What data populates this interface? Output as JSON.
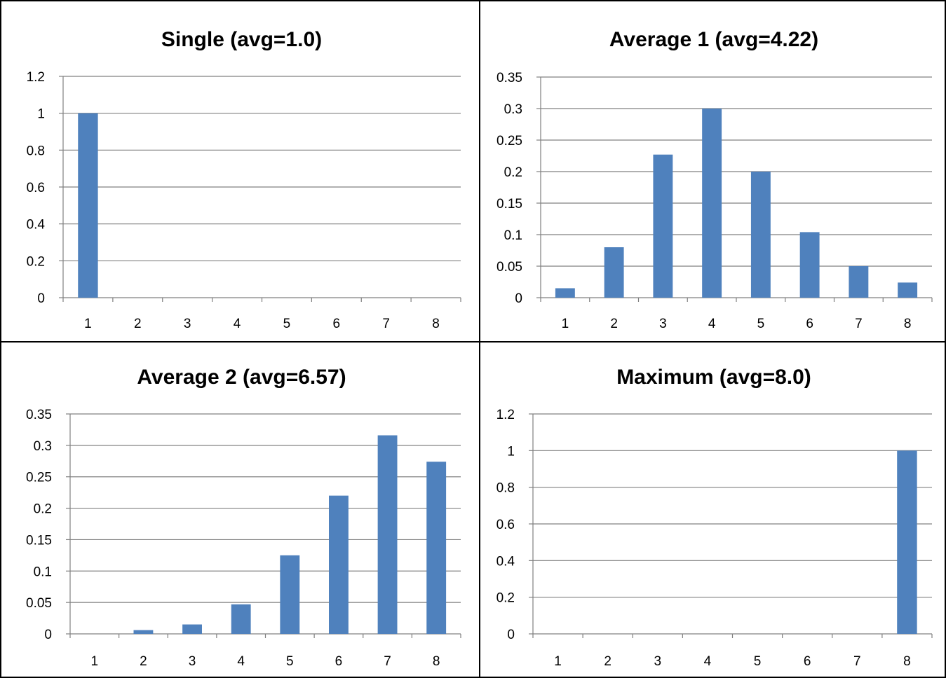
{
  "colors": {
    "bar": "#4f81bd",
    "gridline": "#808080",
    "border": "#000000"
  },
  "chart_data": [
    {
      "type": "bar",
      "title": "Single (avg=1.0)",
      "categories": [
        "1",
        "2",
        "3",
        "4",
        "5",
        "6",
        "7",
        "8"
      ],
      "values": [
        1,
        0,
        0,
        0,
        0,
        0,
        0,
        0
      ],
      "ylim": [
        0,
        1.2
      ],
      "yticks": [
        "0",
        "0.2",
        "0.4",
        "0.6",
        "0.8",
        "1",
        "1.2"
      ],
      "grid": true
    },
    {
      "type": "bar",
      "title": "Average 1 (avg=4.22)",
      "categories": [
        "1",
        "2",
        "3",
        "4",
        "5",
        "6",
        "7",
        "8"
      ],
      "values": [
        0.015,
        0.08,
        0.227,
        0.3,
        0.2,
        0.104,
        0.05,
        0.024
      ],
      "ylim": [
        0,
        0.35
      ],
      "yticks": [
        "0",
        "0.05",
        "0.1",
        "0.15",
        "0.2",
        "0.25",
        "0.3",
        "0.35"
      ],
      "grid": true
    },
    {
      "type": "bar",
      "title": "Average 2 (avg=6.57)",
      "categories": [
        "1",
        "2",
        "3",
        "4",
        "5",
        "6",
        "7",
        "8"
      ],
      "values": [
        0,
        0.006,
        0.015,
        0.047,
        0.125,
        0.22,
        0.316,
        0.274
      ],
      "ylim": [
        0,
        0.35
      ],
      "yticks": [
        "0",
        "0.05",
        "0.1",
        "0.15",
        "0.2",
        "0.25",
        "0.3",
        "0.35"
      ],
      "grid": true
    },
    {
      "type": "bar",
      "title": "Maximum (avg=8.0)",
      "categories": [
        "1",
        "2",
        "3",
        "4",
        "5",
        "6",
        "7",
        "8"
      ],
      "values": [
        0,
        0,
        0,
        0,
        0,
        0,
        0,
        1
      ],
      "ylim": [
        0,
        1.2
      ],
      "yticks": [
        "0",
        "0.2",
        "0.4",
        "0.6",
        "0.8",
        "1",
        "1.2"
      ],
      "grid": true
    }
  ]
}
